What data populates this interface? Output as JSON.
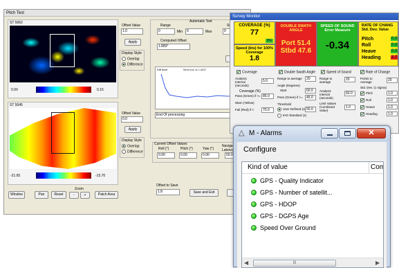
{
  "pitch_test": {
    "title": "Pitch Test",
    "top_image_label": "ST 5062",
    "top_scale_min": "0.00",
    "top_scale_max": "0.15",
    "bottom_image_label": "ST 5045",
    "bottom_scale_min": "-21.65",
    "bottom_scale_max": "-15.70",
    "offset_value_label": "Offset Value",
    "offset_value_1": "1.0",
    "offset_value_2": "0.0",
    "apply_label": "Apply",
    "display_style_label": "Display Style",
    "overlap_label": "Overlap",
    "difference_label": "Difference",
    "range_label": "Range",
    "automatic_test_label": "Automatic Test",
    "step_label": "Step",
    "range_min_value": "0",
    "range_min_label": "Min",
    "range_max_value": "0",
    "range_max_label": "Max",
    "step_value": "0",
    "computed_offset_label": "Computed Offset",
    "computed_offset_value": "1.883°",
    "run_label": "RU",
    "graph_y_label": "Diff level",
    "graph_legend": "Minimum at  1.883°",
    "end_processing": "End Of processing",
    "current_offsets_label": "Current Offset Values",
    "roll_label": "Roll (°)",
    "pitch_label": "Pitch (°)",
    "yaw_label": "Yaw (°)",
    "nav_latency_label": "Navigation Latency",
    "roll_value": "0.00",
    "pitch_value": "0.00",
    "yaw_value": "0.00",
    "latency_value": "50.00",
    "offset_to_save_label": "Offset to Save",
    "offset_to_save_value": "1.8",
    "save_exit_label": "Save and Exit",
    "exit_label": "Exit",
    "window_label": "Window",
    "pan_label": "Pan",
    "reset_label": "Reset",
    "zoom_label": "Zoom",
    "zoom_minus": "-",
    "zoom_plus": "+",
    "patch_area_label": "Patch Area"
  },
  "survey_monitor": {
    "title": "Survey Monitor",
    "coverage_title": "COVERAGE (%)",
    "coverage_value": "77",
    "coverage_badge": "0%",
    "speed_title": "Speed (kts) for 100% Coverage",
    "speed_value": "1.8",
    "double_swath_title": "DOUBLE SWATH ANGLE",
    "port_value": "Port 51.4",
    "stbd_value": "Stbd 47.6",
    "sound_speed_title": "SPEED OF SOUND Error Measure",
    "sound_speed_value": "-0.34",
    "rate_title": "RATE OF CHANG Std. Dev. Value",
    "rate_items": [
      {
        "label": "Pitch",
        "value": "0.0"
      },
      {
        "label": "Roll",
        "value": "0.0"
      },
      {
        "label": "Heave",
        "value": "0.0"
      },
      {
        "label": "Heading",
        "value": "2.7"
      }
    ],
    "coverage_cb": "Coverage",
    "analysis_interval": "Analysis Interval (seconds)",
    "interval_value": "5.0",
    "coverage_pct_label": "Coverage (%)",
    "pass_green": "Pass (Green) if >=",
    "pass_green_value": "85.0",
    "warn_yellow": "Warn (Yellow)",
    "fail_red": "Fail (Red) if <",
    "fail_red_value": "70.0",
    "double_swath_cb": "Double Swath Angle",
    "range_to_average": "Range to average",
    "range_to_average_value": "20",
    "angle_degrees": "Angle (Degrees)",
    "angle_start": "Start",
    "angle_start_value": "60.0",
    "pass_green2_value": "45.0",
    "threshold": "Threshold",
    "user_defined": "User Defined (cm)",
    "user_defined_value": "50.0",
    "iho_standard": "IHO Standard (1)",
    "sound_speed_cb": "Speed of Sound",
    "ping_range_value": "20",
    "analysis_interval2_value": "60.0",
    "limit_values": "Limit Values (Combined value)",
    "limit_value": "1.0",
    "rate_cb": "Rate of Change",
    "points_avg": "Points to Average",
    "points_avg_value": "20",
    "std_dev_label": "Std. Dev. (1 sigma)",
    "std_items": [
      {
        "label": "Pitch",
        "value": "1.0"
      },
      {
        "label": "Roll",
        "value": "1.0"
      },
      {
        "label": "Heave",
        "value": "1.0"
      },
      {
        "label": "Heading",
        "value": "1.0"
      }
    ]
  },
  "alarms": {
    "title": "M - Alarms",
    "configure": "Configure",
    "col_kind": "Kind of value",
    "col_com": "Com",
    "items": [
      "GPS - Quality Indicator",
      "GPS - Number of satellit...",
      "GPS - HDOP",
      "GPS - DGPS Age",
      "Speed Over Ground"
    ],
    "scroll_thumb": "III",
    "colors": {
      "frame": "#c9d6e8",
      "selection": "#dce7f5",
      "dot": "#2ec82e"
    }
  }
}
